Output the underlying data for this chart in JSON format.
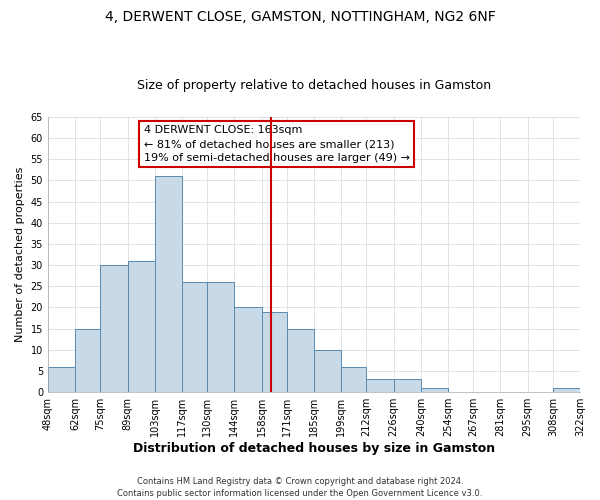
{
  "title": "4, DERWENT CLOSE, GAMSTON, NOTTINGHAM, NG2 6NF",
  "subtitle": "Size of property relative to detached houses in Gamston",
  "xlabel": "Distribution of detached houses by size in Gamston",
  "ylabel": "Number of detached properties",
  "bar_left_edges": [
    48,
    62,
    75,
    89,
    103,
    117,
    130,
    144,
    158,
    171,
    185,
    199,
    212,
    226,
    240,
    254,
    267,
    281,
    295,
    308
  ],
  "bar_heights": [
    6,
    15,
    30,
    31,
    51,
    26,
    26,
    20,
    19,
    15,
    10,
    6,
    3,
    3,
    1,
    0,
    0,
    0,
    0,
    1
  ],
  "bar_widths": [
    14,
    13,
    14,
    14,
    14,
    13,
    14,
    14,
    13,
    14,
    14,
    13,
    14,
    14,
    14,
    13,
    14,
    14,
    13,
    14
  ],
  "tick_labels": [
    "48sqm",
    "62sqm",
    "75sqm",
    "89sqm",
    "103sqm",
    "117sqm",
    "130sqm",
    "144sqm",
    "158sqm",
    "171sqm",
    "185sqm",
    "199sqm",
    "212sqm",
    "226sqm",
    "240sqm",
    "254sqm",
    "267sqm",
    "281sqm",
    "295sqm",
    "308sqm",
    "322sqm"
  ],
  "tick_positions": [
    48,
    62,
    75,
    89,
    103,
    117,
    130,
    144,
    158,
    171,
    185,
    199,
    212,
    226,
    240,
    254,
    267,
    281,
    295,
    308,
    322
  ],
  "bar_color": "#c8d9e8",
  "bar_edge_color": "#5a8ab0",
  "vline_x": 163,
  "vline_color": "#cc0000",
  "annotation_title": "4 DERWENT CLOSE: 163sqm",
  "annotation_line1": "← 81% of detached houses are smaller (213)",
  "annotation_line2": "19% of semi-detached houses are larger (49) →",
  "annotation_box_facecolor": "#ffffff",
  "annotation_box_edgecolor": "#cc0000",
  "ylim": [
    0,
    65
  ],
  "yticks": [
    0,
    5,
    10,
    15,
    20,
    25,
    30,
    35,
    40,
    45,
    50,
    55,
    60,
    65
  ],
  "footer1": "Contains HM Land Registry data © Crown copyright and database right 2024.",
  "footer2": "Contains public sector information licensed under the Open Government Licence v3.0.",
  "title_fontsize": 10,
  "subtitle_fontsize": 9,
  "xlabel_fontsize": 9,
  "ylabel_fontsize": 8,
  "tick_fontsize": 7,
  "annotation_fontsize": 8,
  "footer_fontsize": 6
}
